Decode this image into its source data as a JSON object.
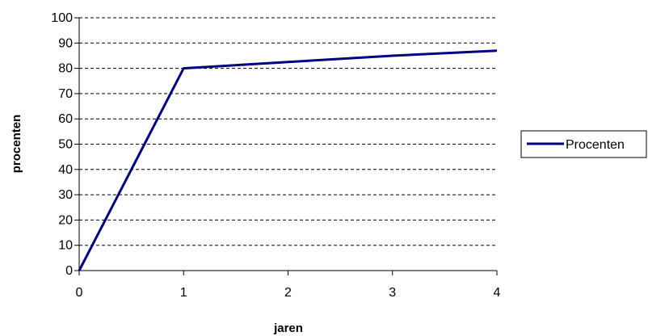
{
  "chart_data": {
    "type": "line",
    "title": "",
    "xlabel": "jaren",
    "ylabel": "procenten",
    "xlim": [
      0,
      4
    ],
    "ylim": [
      0,
      100
    ],
    "x_ticks": [
      0,
      1,
      2,
      3,
      4
    ],
    "y_ticks": [
      0,
      10,
      20,
      30,
      40,
      50,
      60,
      70,
      80,
      90,
      100
    ],
    "grid": "horizontal dashed",
    "legend": "right",
    "series": [
      {
        "name": "Procenten",
        "color": "#000080",
        "x": [
          0,
          1,
          2,
          3,
          4
        ],
        "values": [
          0,
          80,
          82.5,
          85,
          87
        ]
      }
    ]
  }
}
